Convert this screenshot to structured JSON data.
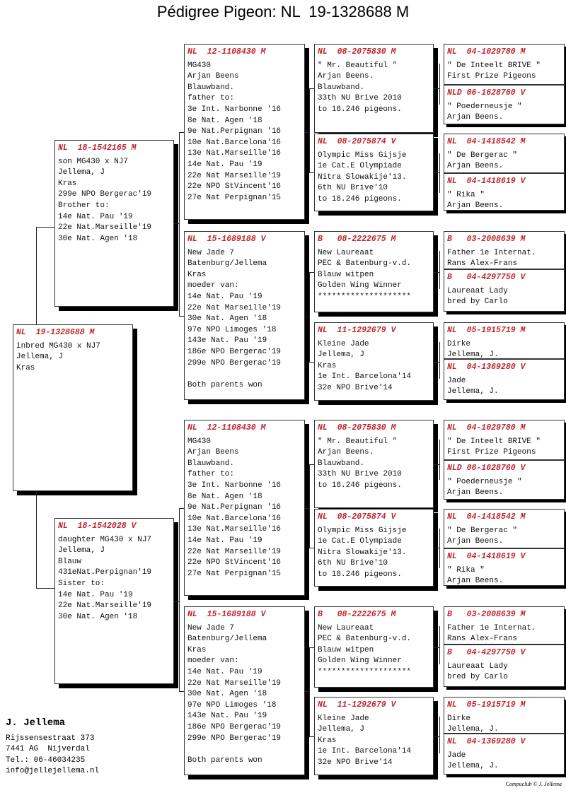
{
  "title": "Pédigree Pigeon: NL  19-1328688 M",
  "colors": {
    "ring": "#c0272d",
    "shadow": "#000000"
  },
  "subject": {
    "ring": "NL  19-1328688 M",
    "lines": [
      "inbred MG430 x NJ7",
      "Jellema, J",
      "Kras"
    ]
  },
  "sire": {
    "ring": "NL  18-1542165 M",
    "lines": [
      "son MG430 x NJ7",
      "Jellema, J",
      "Kras",
      "299e NPO Bergerac'19",
      "Brother to:",
      "14e Nat. Pau '19",
      "22e Nat.Marseille'19",
      "30e Nat. Agen '18"
    ]
  },
  "dam": {
    "ring": "NL  18-1542028 V",
    "lines": [
      "daughter MG430 x NJ7",
      "Jellema, J",
      "Blauw",
      "431eNat.Perpignan'19",
      "Sister to:",
      "14e Nat. Pau '19",
      "22e Nat.Marseille'19",
      "30e Nat. Agen '18"
    ]
  },
  "gen3": [
    {
      "ring": "NL  12-1108430 M",
      "lines": [
        "MG430",
        "Arjan Beens",
        "Blauwband.",
        "father to:",
        "3e Int. Narbonne '16",
        "8e Nat. Agen '18",
        "9e Nat.Perpignan '16",
        "10e Nat.Barcelona'16",
        "13e Nat.Marseille'16",
        "14e Nat. Pau '19",
        "22e Nat Marseille'19",
        "22e NPO StVincent'16",
        "27e Nat Perpignan'15"
      ]
    },
    {
      "ring": "NL  15-1689188 V",
      "lines": [
        "New Jade 7",
        "Batenburg/Jellema",
        "Kras",
        "moeder van:",
        "14e Nat. Pau '19",
        "22e Nat Marseille'19",
        "30e Nat. Agen '18",
        "97e NPO Limoges '18",
        "143e Nat. Pau '19",
        "186e NPO Bergerac'19",
        "299e NPO Bergerac'19",
        "",
        "Both parents won"
      ]
    },
    {
      "ring": "NL  12-1108430 M",
      "lines": [
        "MG430",
        "Arjan Beens",
        "Blauwband.",
        "father to:",
        "3e Int. Narbonne '16",
        "8e Nat. Agen '18",
        "9e Nat.Perpignan '16",
        "10e Nat.Barcelona'16",
        "13e Nat.Marseille'16",
        "14e Nat. Pau '19",
        "22e Nat Marseille'19",
        "22e NPO StVincent'16",
        "27e Nat Perpignan'15"
      ]
    },
    {
      "ring": "NL  15-1689188 V",
      "lines": [
        "New Jade 7",
        "Batenburg/Jellema",
        "Kras",
        "moeder van:",
        "14e Nat. Pau '19",
        "22e Nat Marseille'19",
        "30e Nat. Agen '18",
        "97e NPO Limoges '18",
        "143e Nat. Pau '19",
        "186e NPO Bergerac'19",
        "299e NPO Bergerac'19",
        "",
        "Both parents won"
      ]
    }
  ],
  "gen4": [
    {
      "ring": "NL  08-2075830 M",
      "lines": [
        "\" Mr. Beautiful \"",
        "Arjan Beens.",
        "Blauwband.",
        "33th NU Brive 2010",
        "to 18.246 pigeons."
      ]
    },
    {
      "ring": "NL  08-2075874 V",
      "lines": [
        "Olympic Miss Gijsje",
        "1e Cat.E Olympiade",
        "Nitra Slowakije'13.",
        "6th NU Brive'10",
        "to 18.246 pigeons."
      ]
    },
    {
      "ring": "B   08-2222675 M",
      "lines": [
        "New Laureaat",
        "PEC & Batenburg-v.d.",
        "Blauw witpen",
        "Golden Wing Winner",
        "********************"
      ]
    },
    {
      "ring": "NL  11-1292679 V",
      "lines": [
        "Kleine Jade",
        "Jellema, J",
        "Kras",
        "1e Int. Barcelona'14",
        "32e NPO Brive'14"
      ]
    },
    {
      "ring": "NL  08-2075830 M",
      "lines": [
        "\" Mr. Beautiful \"",
        "Arjan Beens.",
        "Blauwband.",
        "33th NU Brive 2010",
        "to 18.246 pigeons."
      ]
    },
    {
      "ring": "NL  08-2075874 V",
      "lines": [
        "Olympic Miss Gijsje",
        "1e Cat.E Olympiade",
        "Nitra Slowakije'13.",
        "6th NU Brive'10",
        "to 18.246 pigeons."
      ]
    },
    {
      "ring": "B   08-2222675 M",
      "lines": [
        "New Laureaat",
        "PEC & Batenburg-v.d.",
        "Blauw witpen",
        "Golden Wing Winner",
        "********************"
      ]
    },
    {
      "ring": "NL  11-1292679 V",
      "lines": [
        "Kleine Jade",
        "Jellema, J",
        "Kras",
        "1e Int. Barcelona'14",
        "32e NPO Brive'14"
      ]
    }
  ],
  "gen5": [
    {
      "ring": "NL  04-1029780 M",
      "lines": [
        "\" De Inteelt BRIVE \"",
        "First Prize Pigeons"
      ]
    },
    {
      "ring": "NLD 06-1628760 V",
      "lines": [
        "\" Poederneusje \"",
        "Arjan Beens."
      ]
    },
    {
      "ring": "NL  04-1418542 M",
      "lines": [
        "\" De Bergerac \"",
        "Arjan Beens."
      ]
    },
    {
      "ring": "NL  04-1418619 V",
      "lines": [
        "\" Rika \"",
        "Arjan Beens."
      ]
    },
    {
      "ring": "B   03-2008639 M",
      "lines": [
        "Father 1e Internat.",
        "Rans Alex-Frans"
      ]
    },
    {
      "ring": "B   04-4297750 V",
      "lines": [
        "Laureaat Lady",
        "bred by Carlo"
      ]
    },
    {
      "ring": "NL  05-1915719 M",
      "lines": [
        "Dirke",
        "Jellema, J."
      ]
    },
    {
      "ring": "NL  04-1369280 V",
      "lines": [
        "Jade",
        "Jellema, J."
      ]
    },
    {
      "ring": "NL  04-1029780 M",
      "lines": [
        "\" De Inteelt BRIVE \"",
        "First Prize Pigeons"
      ]
    },
    {
      "ring": "NLD 06-1628760 V",
      "lines": [
        "\" Poederneusje \"",
        "Arjan Beens."
      ]
    },
    {
      "ring": "NL  04-1418542 M",
      "lines": [
        "\" De Bergerac \"",
        "Arjan Beens."
      ]
    },
    {
      "ring": "NL  04-1418619 V",
      "lines": [
        "\" Rika \"",
        "Arjan Beens."
      ]
    },
    {
      "ring": "B   03-2008639 M",
      "lines": [
        "Father 1e Internat.",
        "Rans Alex-Frans"
      ]
    },
    {
      "ring": "B   04-4297750 V",
      "lines": [
        "Laureaat Lady",
        "bred by Carlo"
      ]
    },
    {
      "ring": "NL  05-1915719 M",
      "lines": [
        "Dirke",
        "Jellema, J."
      ]
    },
    {
      "ring": "NL  04-1369280 V",
      "lines": [
        "Jade",
        "Jellema, J."
      ]
    }
  ],
  "owner": {
    "name": "J. Jellema",
    "street": "Rijssensestraat 373",
    "city": "7441 AG  Nijverdal",
    "phone": "Tel.: 06-46034235",
    "email": "info@jellejellema.nl"
  },
  "footer": "Compuclub © J. Jellema"
}
